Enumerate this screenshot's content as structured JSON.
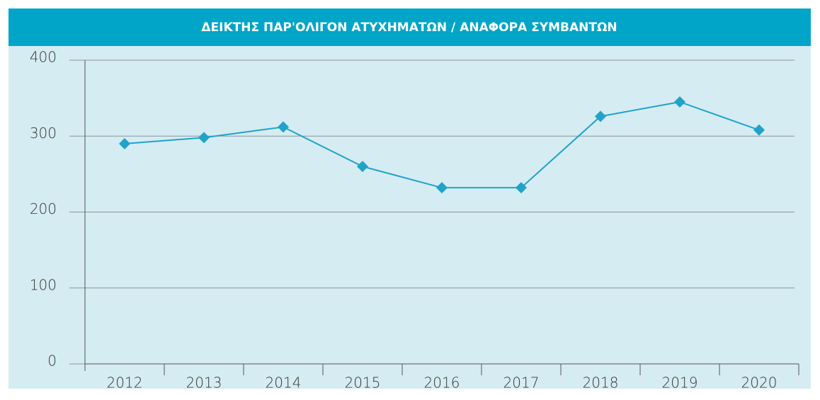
{
  "chart_data": {
    "type": "line",
    "title": "ΔΕΙΚΤΗΣ ΠΑΡ'ΟΛΙΓΟΝ ΑΤΥΧΗΜΑΤΩΝ / ΑΝΑΦΟΡΑ ΣΥΜΒΑΝΤΩΝ",
    "categories": [
      "2012",
      "2013",
      "2014",
      "2015",
      "2016",
      "2017",
      "2018",
      "2019",
      "2020"
    ],
    "series": [
      {
        "name": "Δείκτης",
        "color": "#1fa3c9",
        "values": [
          290,
          298,
          312,
          260,
          232,
          232,
          326,
          345,
          308
        ]
      }
    ],
    "ylim": [
      0,
      400
    ],
    "yticks": [
      0,
      100,
      200,
      300,
      400
    ],
    "grid": true
  }
}
